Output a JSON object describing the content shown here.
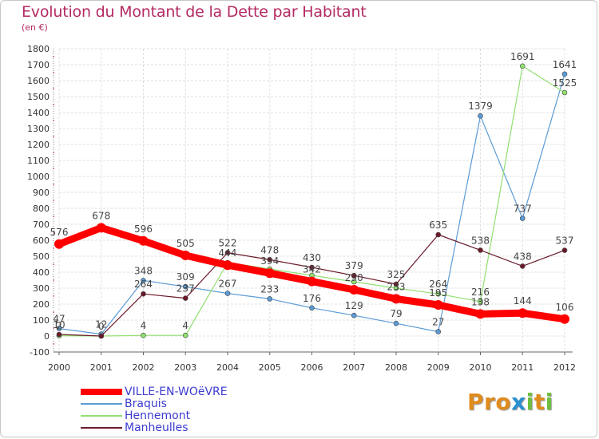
{
  "title": "Evolution du Montant de la Dette par Habitant",
  "subtitle": "(en €)",
  "brand": {
    "text": "Proxiti",
    "parts": [
      "Pro",
      "x",
      "i",
      "t",
      "i"
    ]
  },
  "colors": {
    "title": "#b42a63",
    "grid": "#e0e0e0",
    "axis": "#666666",
    "legend_text": "#3b3bd0"
  },
  "chart_data": {
    "type": "line",
    "title": "Evolution du Montant de la Dette par Habitant",
    "ylabel": "(en €)",
    "xlabel": "",
    "x": [
      "2000",
      "2001",
      "2002",
      "2003",
      "2004",
      "2005",
      "2006",
      "2007",
      "2008",
      "2009",
      "2010",
      "2011",
      "2012"
    ],
    "ylim": [
      -100,
      1800
    ],
    "yticks": [
      -100,
      0,
      100,
      200,
      300,
      400,
      500,
      600,
      700,
      800,
      900,
      1000,
      1100,
      1200,
      1300,
      1400,
      1500,
      1600,
      1700,
      1800
    ],
    "grid": true,
    "legend_position": "bottom-left",
    "series": [
      {
        "name": "VILLE-EN-WOëVRE",
        "color": "#ff0000",
        "values": [
          576,
          678,
          596,
          505,
          444,
          394,
          342,
          290,
          233,
          195,
          138,
          144,
          106
        ],
        "labels": [
          "576",
          "678",
          "596",
          "505",
          "444",
          "394",
          "342",
          "290",
          "233",
          "195",
          "138",
          "144",
          "106"
        ]
      },
      {
        "name": "Braquis",
        "color": "#5b9bd5",
        "values": [
          47,
          12,
          348,
          309,
          267,
          233,
          176,
          129,
          79,
          27,
          1379,
          737,
          1641
        ],
        "labels": [
          "47",
          "12",
          "348",
          "309",
          "267",
          "233",
          "176",
          "129",
          "79",
          "27",
          "1379",
          "737",
          "1641"
        ]
      },
      {
        "name": "Hennemont",
        "color": "#90e070",
        "values": [
          2,
          0,
          4,
          4,
          460,
          420,
          380,
          340,
          300,
          264,
          216,
          1691,
          1525
        ],
        "labels": [
          "2",
          "0",
          "4",
          "4",
          "",
          "",
          "",
          "",
          "",
          "264",
          "216",
          "1691",
          "1525"
        ]
      },
      {
        "name": "Manheulles",
        "color": "#6b1a2a",
        "values": [
          10,
          0,
          264,
          237,
          522,
          478,
          430,
          379,
          325,
          635,
          538,
          438,
          537
        ],
        "labels": [
          "10",
          "",
          "264",
          "237",
          "522",
          "478",
          "430",
          "379",
          "325",
          "635",
          "538",
          "438",
          "537"
        ]
      }
    ]
  }
}
